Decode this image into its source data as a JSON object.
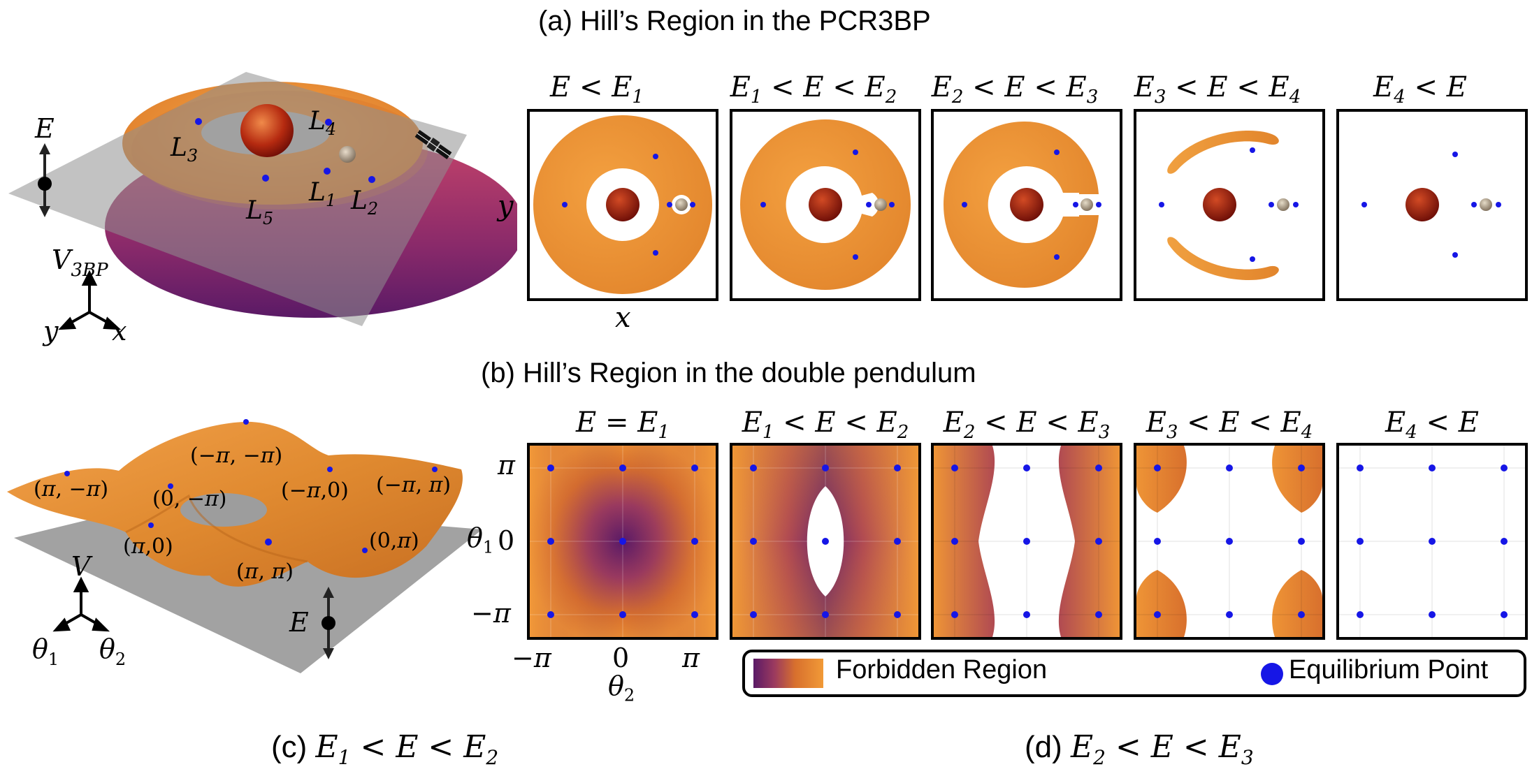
{
  "section_a": {
    "title": "(a) Hill’s Region in the PCR3BP",
    "panel_labels": [
      "E < E1",
      "E1 < E < E2",
      "E2 < E < E3",
      "E3 < E < E4",
      "E4 < E"
    ],
    "axis_x": "x",
    "axis_y": "y"
  },
  "section_b": {
    "title": "(b) Hill’s Region in the double pendulum",
    "panel_labels": [
      "E = E1",
      "E1 < E < E2",
      "E2 < E < E3",
      "E3 < E < E4",
      "E4 < E"
    ],
    "y_ticks": [
      "π",
      "0",
      "−π"
    ],
    "x_ticks": [
      "−π",
      "0",
      "π"
    ],
    "y_axis_label": "θ1",
    "x_axis_label": "θ2"
  },
  "left_top": {
    "energy_label": "E",
    "potential_label": "V3BP",
    "axis_y": "y",
    "axis_x": "x",
    "lagrange_labels": [
      "L3",
      "L4",
      "L5",
      "L1",
      "L2"
    ]
  },
  "left_bottom": {
    "potential_label": "V",
    "energy_label": "E",
    "axis_t1": "θ1",
    "axis_t2": "θ2",
    "point_labels": [
      "(−π, −π)",
      "(π, −π)",
      "(0, −π)",
      "(−π,0)",
      "(−π, π)",
      "(π,0)",
      "(0,π)",
      "(π, π)"
    ]
  },
  "legend": {
    "forbidden": "Forbidden Region",
    "equilibrium": "Equilibrium Point"
  },
  "captions": {
    "c": "(c) E1 < E < E2",
    "d": "(d) E2 < E < E3"
  },
  "colors": {
    "orange": "#e8902f",
    "purple": "#5a1a66",
    "equilibrium": "#1616e6",
    "plane": "#9a9a9a"
  }
}
